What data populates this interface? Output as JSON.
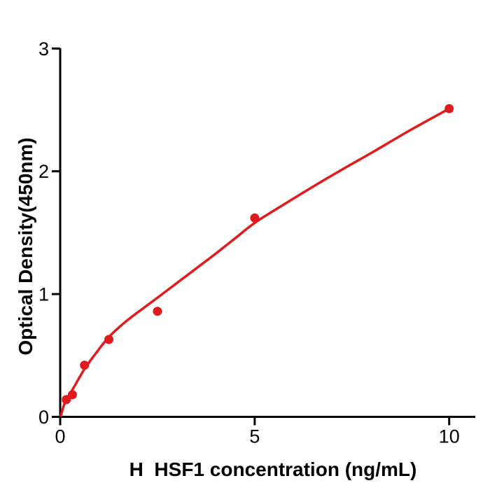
{
  "figure": {
    "background": "#ffffff",
    "axis_color": "#000000",
    "accent_color": "#e01b1e"
  },
  "chart_data": {
    "type": "scatter",
    "title": "",
    "xlabel": "H  HSF1 concentration (ng/mL)",
    "ylabel": "Optical Density(450nm)",
    "xlim": [
      0,
      10.67
    ],
    "ylim": [
      0,
      3
    ],
    "x_ticks": [
      0,
      5,
      10
    ],
    "y_ticks": [
      0,
      1,
      2,
      3
    ],
    "grid": false,
    "legend": null,
    "series": [
      {
        "name": "standard-points",
        "type": "scatter",
        "color": "#e01b1e",
        "marker_radius": 6.5,
        "x": [
          0.156,
          0.313,
          0.625,
          1.25,
          2.5,
          5,
          10
        ],
        "y": [
          0.14,
          0.18,
          0.42,
          0.63,
          0.86,
          1.62,
          2.51
        ]
      },
      {
        "name": "fitted-curve",
        "type": "line",
        "color": "#e01b1e",
        "line_width": 3.5,
        "x": [
          0.02,
          0.08,
          0.156,
          0.313,
          0.625,
          0.9,
          1.25,
          1.7,
          2.2,
          2.5,
          3.0,
          3.5,
          4.0,
          4.5,
          5.0,
          5.75,
          6.5,
          7.25,
          8.0,
          9.0,
          10.0
        ],
        "y": [
          0.01,
          0.08,
          0.14,
          0.22,
          0.39,
          0.51,
          0.65,
          0.78,
          0.9,
          0.97,
          1.09,
          1.21,
          1.33,
          1.455,
          1.58,
          1.73,
          1.875,
          2.015,
          2.15,
          2.335,
          2.51
        ]
      }
    ]
  }
}
